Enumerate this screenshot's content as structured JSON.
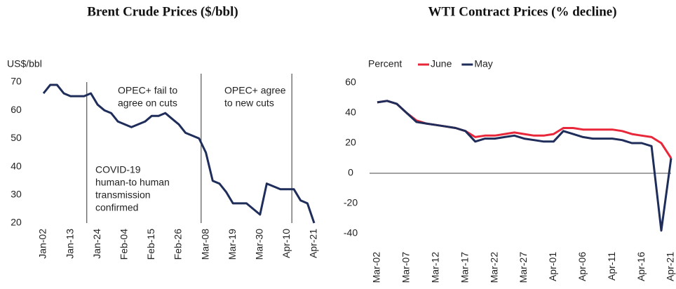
{
  "chart_data": [
    {
      "type": "line",
      "title": "Brent Crude Prices ($/bbl)",
      "y_label": "US$/bbl",
      "categories": [
        "Jan-02",
        null,
        null,
        null,
        "Jan-13",
        null,
        null,
        null,
        "Jan-24",
        null,
        null,
        null,
        "Feb-04",
        null,
        null,
        null,
        "Feb-15",
        null,
        null,
        null,
        "Feb-26",
        null,
        null,
        null,
        "Mar-08",
        null,
        null,
        null,
        "Mar-19",
        null,
        null,
        null,
        "Mar-30",
        null,
        null,
        null,
        "Apr-10",
        null,
        null,
        null,
        "Apr-21"
      ],
      "series": [
        {
          "name": "Brent",
          "color": "#1f2d5a",
          "values": [
            66,
            69,
            69,
            66,
            65,
            65,
            65,
            66,
            62,
            60,
            59,
            56,
            55,
            54,
            55,
            56,
            58,
            58,
            59,
            57,
            55,
            52,
            51,
            50,
            45,
            35,
            34,
            31,
            27,
            27,
            27,
            25,
            23,
            34,
            33,
            32,
            32,
            32,
            28,
            27,
            20
          ]
        }
      ],
      "ylim": [
        20,
        70
      ],
      "yticks": [
        20,
        30,
        40,
        50,
        60,
        70
      ],
      "annotations": [
        {
          "text": [
            "COVID-19",
            "human-to human",
            "transmission",
            "confirmed"
          ]
        },
        {
          "text": [
            "OPEC+ fail to",
            "agree on cuts"
          ]
        },
        {
          "text": [
            "OPEC+ agree",
            "to new cuts"
          ]
        }
      ]
    },
    {
      "type": "line",
      "title": "WTI Contract Prices (% decline)",
      "y_label": "Percent",
      "categories": [
        "Mar-02",
        null,
        null,
        "Mar-07",
        null,
        null,
        "Mar-12",
        null,
        null,
        "Mar-17",
        null,
        null,
        "Mar-22",
        null,
        null,
        "Mar-27",
        null,
        null,
        "Apr-01",
        null,
        null,
        "Apr-06",
        null,
        null,
        "Apr-11",
        null,
        null,
        "Apr-16",
        null,
        null,
        "Apr-21"
      ],
      "series": [
        {
          "name": "June",
          "color": "#e8283a",
          "values": [
            47,
            48,
            46,
            40,
            35,
            33,
            32,
            31,
            30,
            28,
            24,
            25,
            25,
            26,
            27,
            26,
            25,
            25,
            26,
            30,
            30,
            29,
            29,
            29,
            29,
            28,
            26,
            25,
            24,
            20,
            10
          ]
        },
        {
          "name": "May",
          "color": "#1f2d5a",
          "values": [
            47,
            48,
            46,
            40,
            34,
            33,
            32,
            31,
            30,
            28,
            21,
            23,
            23,
            24,
            25,
            23,
            22,
            21,
            21,
            28,
            26,
            24,
            23,
            23,
            23,
            22,
            20,
            20,
            18,
            -38,
            10
          ]
        }
      ],
      "ylim": [
        -40,
        60
      ],
      "yticks": [
        -40,
        -20,
        0,
        20,
        40,
        60
      ],
      "legend": "top"
    }
  ]
}
